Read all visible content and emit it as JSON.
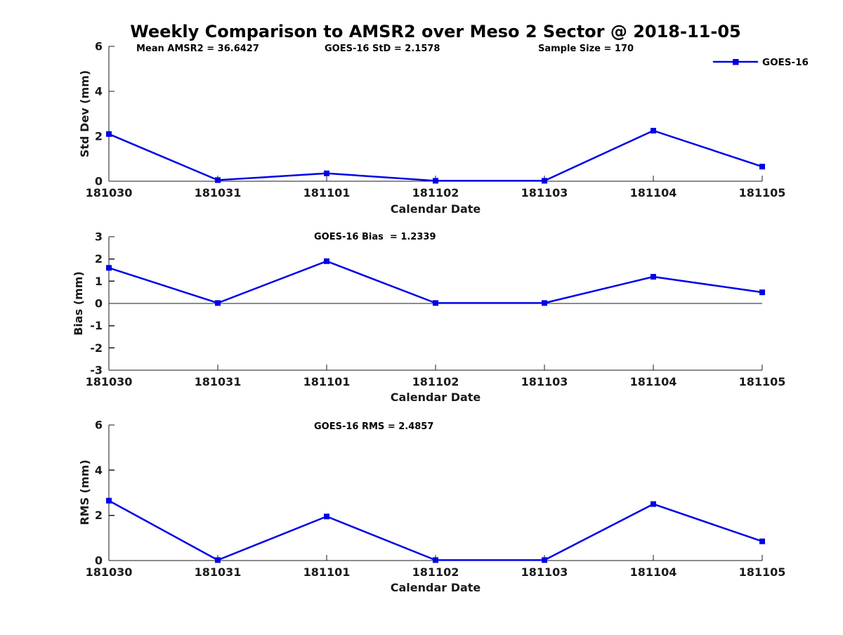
{
  "page": {
    "title": "Weekly Comparison to AMSR2 over Meso 2 Sector @ 2018-11-05"
  },
  "colors": {
    "series": "#0000e8",
    "axis": "#1a1a1a",
    "text": "#000000"
  },
  "legend": {
    "label": "GOES-16",
    "marker": "filled-square-icon",
    "position": "top-right",
    "color": "#0000e8"
  },
  "chart_data": [
    {
      "type": "line",
      "ylabel": "Std Dev (mm)",
      "xlabel": "Calendar Date",
      "ylim": [
        0,
        6
      ],
      "yticks": [
        0,
        2,
        4,
        6
      ],
      "zero_line": false,
      "grid": false,
      "categories": [
        "181030",
        "181031",
        "181101",
        "181102",
        "181103",
        "181104",
        "181105"
      ],
      "series": [
        {
          "name": "GOES-16",
          "values": [
            2.1,
            0.05,
            0.35,
            0.02,
            0.02,
            2.25,
            0.65
          ]
        }
      ],
      "annotations": [
        {
          "text": "Mean AMSR2 = 36.6427",
          "x": 194
        },
        {
          "text": "GOES-16 StD = 2.1578",
          "x": 462
        },
        {
          "text": "Sample Size = 170",
          "x": 766
        }
      ]
    },
    {
      "type": "line",
      "ylabel": "Bias (mm)",
      "xlabel": "Calendar Date",
      "ylim": [
        -3,
        3
      ],
      "yticks": [
        -3,
        -2,
        -1,
        0,
        1,
        2,
        3
      ],
      "zero_line": true,
      "grid": false,
      "categories": [
        "181030",
        "181031",
        "181101",
        "181102",
        "181103",
        "181104",
        "181105"
      ],
      "series": [
        {
          "name": "GOES-16",
          "values": [
            1.6,
            0.02,
            1.9,
            0.02,
            0.02,
            1.2,
            0.5
          ]
        }
      ],
      "annotations": [
        {
          "text": "GOES-16 Bias  = 1.2339",
          "x": 447
        }
      ]
    },
    {
      "type": "line",
      "ylabel": "RMS (mm)",
      "xlabel": "Calendar Date",
      "ylim": [
        0,
        6
      ],
      "yticks": [
        0,
        2,
        4,
        6
      ],
      "zero_line": false,
      "grid": false,
      "categories": [
        "181030",
        "181031",
        "181101",
        "181102",
        "181103",
        "181104",
        "181105"
      ],
      "series": [
        {
          "name": "GOES-16",
          "values": [
            2.65,
            0.02,
            1.95,
            0.02,
            0.02,
            2.5,
            0.85
          ]
        }
      ],
      "annotations": [
        {
          "text": "GOES-16 RMS = 2.4857",
          "x": 447
        }
      ]
    }
  ]
}
